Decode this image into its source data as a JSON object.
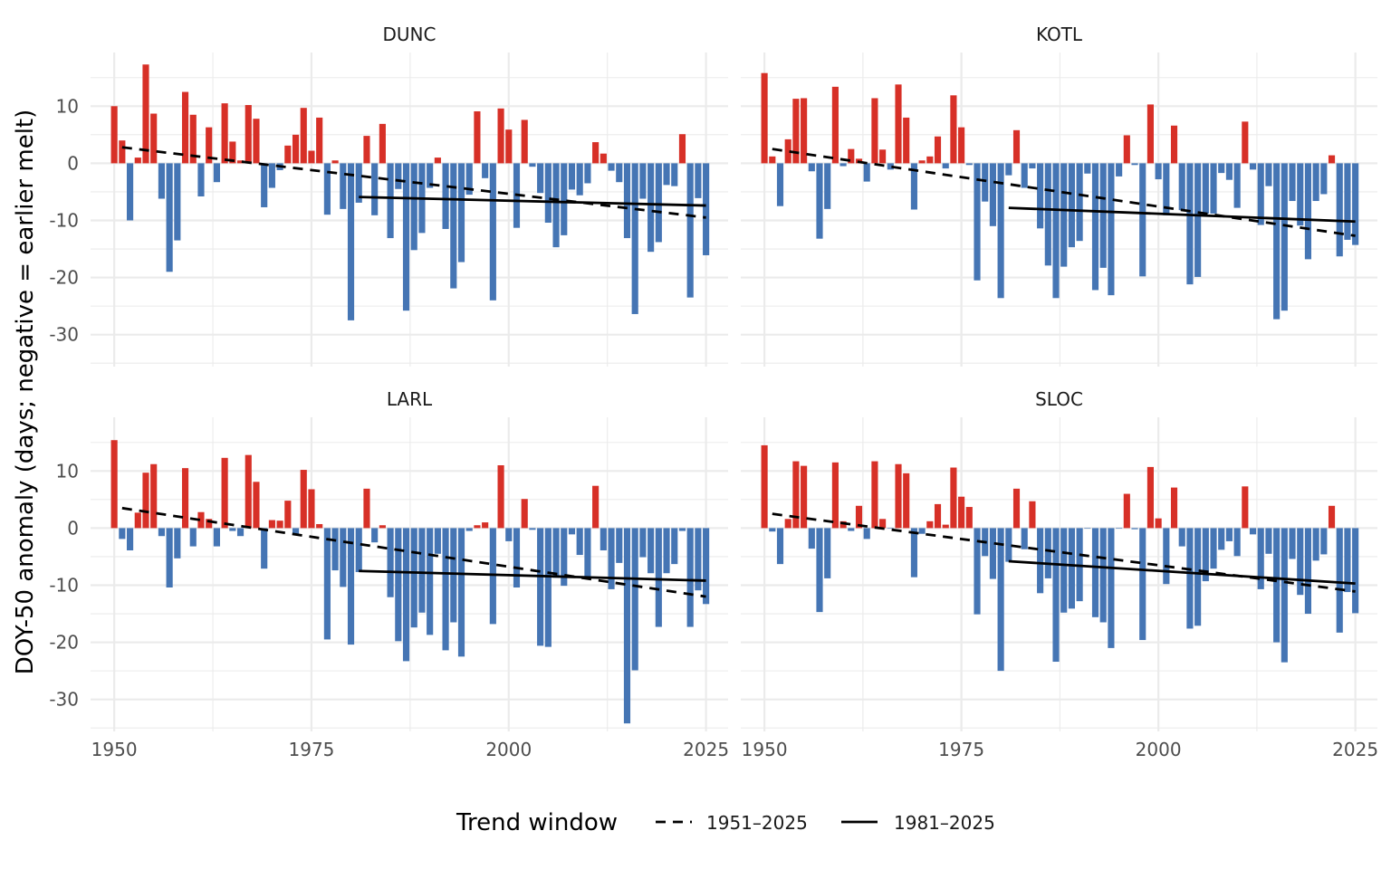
{
  "chart_data": {
    "type": "bar",
    "ylabel": "DOY-50 anomaly (days; negative = earlier melt)",
    "xlim": [
      1947,
      2027.8
    ],
    "ylim": [
      -35.6,
      19.4
    ],
    "x_ticks": [
      1950,
      1975,
      2000,
      2025
    ],
    "y_ticks": [
      -30,
      -20,
      -10,
      0,
      10
    ],
    "grid": true,
    "colors": {
      "positive": "#d73027",
      "negative": "#4575b4",
      "trend": "#000000"
    },
    "legend": {
      "position": "bottom",
      "title": "Trend window",
      "items": [
        {
          "label": "1951–2025",
          "style": "dashed"
        },
        {
          "label": "1981–2025",
          "style": "solid"
        }
      ]
    },
    "panels": [
      {
        "station": "DUNC",
        "years": [
          1950,
          1951,
          1952,
          1953,
          1954,
          1955,
          1956,
          1957,
          1958,
          1959,
          1960,
          1961,
          1962,
          1963,
          1964,
          1965,
          1966,
          1967,
          1968,
          1969,
          1970,
          1971,
          1972,
          1973,
          1974,
          1975,
          1976,
          1977,
          1978,
          1979,
          1980,
          1981,
          1982,
          1983,
          1984,
          1985,
          1986,
          1987,
          1988,
          1989,
          1990,
          1991,
          1992,
          1993,
          1994,
          1995,
          1996,
          1997,
          1998,
          1999,
          2000,
          2001,
          2002,
          2003,
          2004,
          2005,
          2006,
          2007,
          2008,
          2009,
          2010,
          2011,
          2012,
          2013,
          2014,
          2015,
          2016,
          2017,
          2018,
          2019,
          2020,
          2021,
          2022,
          2023,
          2024,
          2025
        ],
        "anomalies": [
          10,
          4,
          -10,
          1,
          17.3,
          8.7,
          -6.2,
          -19,
          -13.5,
          12.5,
          8.5,
          -5.8,
          6.3,
          -3.3,
          10.5,
          3.8,
          0.5,
          10.2,
          7.8,
          -7.7,
          -4.3,
          -1.2,
          3.1,
          5,
          9.7,
          2.2,
          8,
          -9,
          0.5,
          -8,
          -27.5,
          -6.9,
          4.8,
          -9.1,
          6.9,
          -13.1,
          -4.5,
          -25.8,
          -15.2,
          -12.2,
          -4.3,
          1,
          -11.5,
          -21.9,
          -17.3,
          -5.5,
          9.1,
          -2.6,
          -24,
          9.6,
          5.9,
          -11.3,
          7.6,
          -0.6,
          -5.2,
          -10.4,
          -14.7,
          -12.6,
          -4.6,
          -5.6,
          -3.5,
          3.7,
          1.7,
          -1.3,
          -3.3,
          -13.1,
          -26.4,
          -6.2,
          -15.5,
          -13.8,
          -3.8,
          -4,
          5.1,
          -23.5,
          -6.1,
          -16.1
        ],
        "trend_1951_2025": [
          2.8,
          -9.5
        ],
        "trend_1981_2025": [
          -5.9,
          -7.4
        ]
      },
      {
        "station": "KOTL",
        "years": [
          1950,
          1951,
          1952,
          1953,
          1954,
          1955,
          1956,
          1957,
          1958,
          1959,
          1960,
          1961,
          1962,
          1963,
          1964,
          1965,
          1966,
          1967,
          1968,
          1969,
          1970,
          1971,
          1972,
          1973,
          1974,
          1975,
          1976,
          1977,
          1978,
          1979,
          1980,
          1981,
          1982,
          1983,
          1984,
          1985,
          1986,
          1987,
          1988,
          1989,
          1990,
          1991,
          1992,
          1993,
          1994,
          1995,
          1996,
          1997,
          1998,
          1999,
          2000,
          2001,
          2002,
          2003,
          2004,
          2005,
          2006,
          2007,
          2008,
          2009,
          2010,
          2011,
          2012,
          2013,
          2014,
          2015,
          2016,
          2017,
          2018,
          2019,
          2020,
          2021,
          2022,
          2023,
          2024,
          2025
        ],
        "anomalies": [
          15.8,
          1.2,
          -7.5,
          4.2,
          11.3,
          11.4,
          -1.4,
          -13.2,
          -8,
          13.4,
          -0.5,
          2.5,
          0.8,
          -3.2,
          11.4,
          2.4,
          -1.1,
          13.8,
          8,
          -8.1,
          0.5,
          1.2,
          4.7,
          -0.9,
          11.9,
          6.3,
          -0.3,
          -20.5,
          -6.7,
          -11,
          -23.6,
          -2.1,
          5.8,
          -4.3,
          -0.9,
          -11.4,
          -17.9,
          -23.6,
          -18.1,
          -14.7,
          -13.6,
          -1.8,
          -22.2,
          -18.3,
          -23.1,
          -2.3,
          4.9,
          -0.3,
          -19.8,
          10.3,
          -2.8,
          -9.1,
          6.6,
          -8.2,
          -21.2,
          -19.9,
          -8.8,
          -8.8,
          -1.7,
          -2.9,
          -7.8,
          7.3,
          -1.1,
          -10.8,
          -4,
          -27.3,
          -25.8,
          -6.6,
          -10.9,
          -16.8,
          -6.6,
          -5.4,
          1.4,
          -16.3,
          -13.4,
          -14.3
        ],
        "trend_1951_2025": [
          2.5,
          -12.7
        ],
        "trend_1981_2025": [
          -7.8,
          -10.2
        ]
      },
      {
        "station": "LARL",
        "years": [
          1950,
          1951,
          1952,
          1953,
          1954,
          1955,
          1956,
          1957,
          1958,
          1959,
          1960,
          1961,
          1962,
          1963,
          1964,
          1965,
          1966,
          1967,
          1968,
          1969,
          1970,
          1971,
          1972,
          1973,
          1974,
          1975,
          1976,
          1977,
          1978,
          1979,
          1980,
          1981,
          1982,
          1983,
          1984,
          1985,
          1986,
          1987,
          1988,
          1989,
          1990,
          1991,
          1992,
          1993,
          1994,
          1995,
          1996,
          1997,
          1998,
          1999,
          2000,
          2001,
          2002,
          2003,
          2004,
          2005,
          2006,
          2007,
          2008,
          2009,
          2010,
          2011,
          2012,
          2013,
          2014,
          2015,
          2016,
          2017,
          2018,
          2019,
          2020,
          2021,
          2022,
          2023,
          2024,
          2025
        ],
        "anomalies": [
          15.4,
          -1.9,
          -3.9,
          2.7,
          9.7,
          11.2,
          -1.4,
          -10.4,
          -5.3,
          10.5,
          -3.2,
          2.8,
          1.6,
          -3.2,
          12.3,
          -0.5,
          -1.4,
          12.8,
          8.1,
          -7.1,
          1.4,
          1.3,
          4.8,
          -1.2,
          10.2,
          6.8,
          0.7,
          -19.5,
          -7.4,
          -10.3,
          -20.4,
          -7.7,
          6.9,
          -2.5,
          0.5,
          -12.1,
          -19.8,
          -23.3,
          -17.4,
          -14.8,
          -18.7,
          -4.5,
          -21.4,
          -16.5,
          -22.5,
          -0.5,
          0.5,
          1,
          -16.8,
          11,
          -2.3,
          -10.4,
          5.1,
          -0.3,
          -20.6,
          -20.8,
          -8.7,
          -10.1,
          -1.1,
          -4.7,
          -8.8,
          7.4,
          -3.9,
          -10.7,
          -6.1,
          -34.2,
          -24.9,
          -5.1,
          -7.9,
          -17.3,
          -7.9,
          -6.3,
          -0.5,
          -17.3,
          -10.9,
          -13.3
        ],
        "trend_1951_2025": [
          3.5,
          -12
        ],
        "trend_1981_2025": [
          -7.5,
          -9.2
        ]
      },
      {
        "station": "SLOC",
        "years": [
          1950,
          1951,
          1952,
          1953,
          1954,
          1955,
          1956,
          1957,
          1958,
          1959,
          1960,
          1961,
          1962,
          1963,
          1964,
          1965,
          1966,
          1967,
          1968,
          1969,
          1970,
          1971,
          1972,
          1973,
          1974,
          1975,
          1976,
          1977,
          1978,
          1979,
          1980,
          1981,
          1982,
          1983,
          1984,
          1985,
          1986,
          1987,
          1988,
          1989,
          1990,
          1991,
          1992,
          1993,
          1994,
          1995,
          1996,
          1997,
          1998,
          1999,
          2000,
          2001,
          2002,
          2003,
          2004,
          2005,
          2006,
          2007,
          2008,
          2009,
          2010,
          2011,
          2012,
          2013,
          2014,
          2015,
          2016,
          2017,
          2018,
          2019,
          2020,
          2021,
          2022,
          2023,
          2024,
          2025
        ],
        "anomalies": [
          14.5,
          -0.6,
          -6.3,
          1.6,
          11.7,
          10.9,
          -3.6,
          -14.7,
          -8.8,
          11.5,
          1.2,
          -0.5,
          3.9,
          -1.9,
          11.7,
          1.6,
          -0.1,
          11.2,
          9.6,
          -8.6,
          -1,
          1.2,
          4.2,
          0.6,
          10.6,
          5.5,
          3.7,
          -15.1,
          -4.9,
          -8.9,
          -25,
          -5.9,
          6.9,
          -3.7,
          4.7,
          -11.4,
          -8.8,
          -23.4,
          -14.8,
          -14.1,
          -12.8,
          -0.1,
          -15.6,
          -16.5,
          -21,
          -0.1,
          6,
          -0.2,
          -19.6,
          10.7,
          1.7,
          -9.8,
          7.1,
          -3.2,
          -17.6,
          -17.1,
          -9.3,
          -7.1,
          -3.8,
          -2.3,
          -4.9,
          7.3,
          -1.1,
          -10.7,
          -4.5,
          -20,
          -23.5,
          -5.4,
          -11.7,
          -15,
          -5.7,
          -4.6,
          3.9,
          -18.3,
          -11.2,
          -14.9
        ],
        "trend_1951_2025": [
          2.5,
          -11.1
        ],
        "trend_1981_2025": [
          -5.8,
          -9.7
        ]
      }
    ]
  }
}
